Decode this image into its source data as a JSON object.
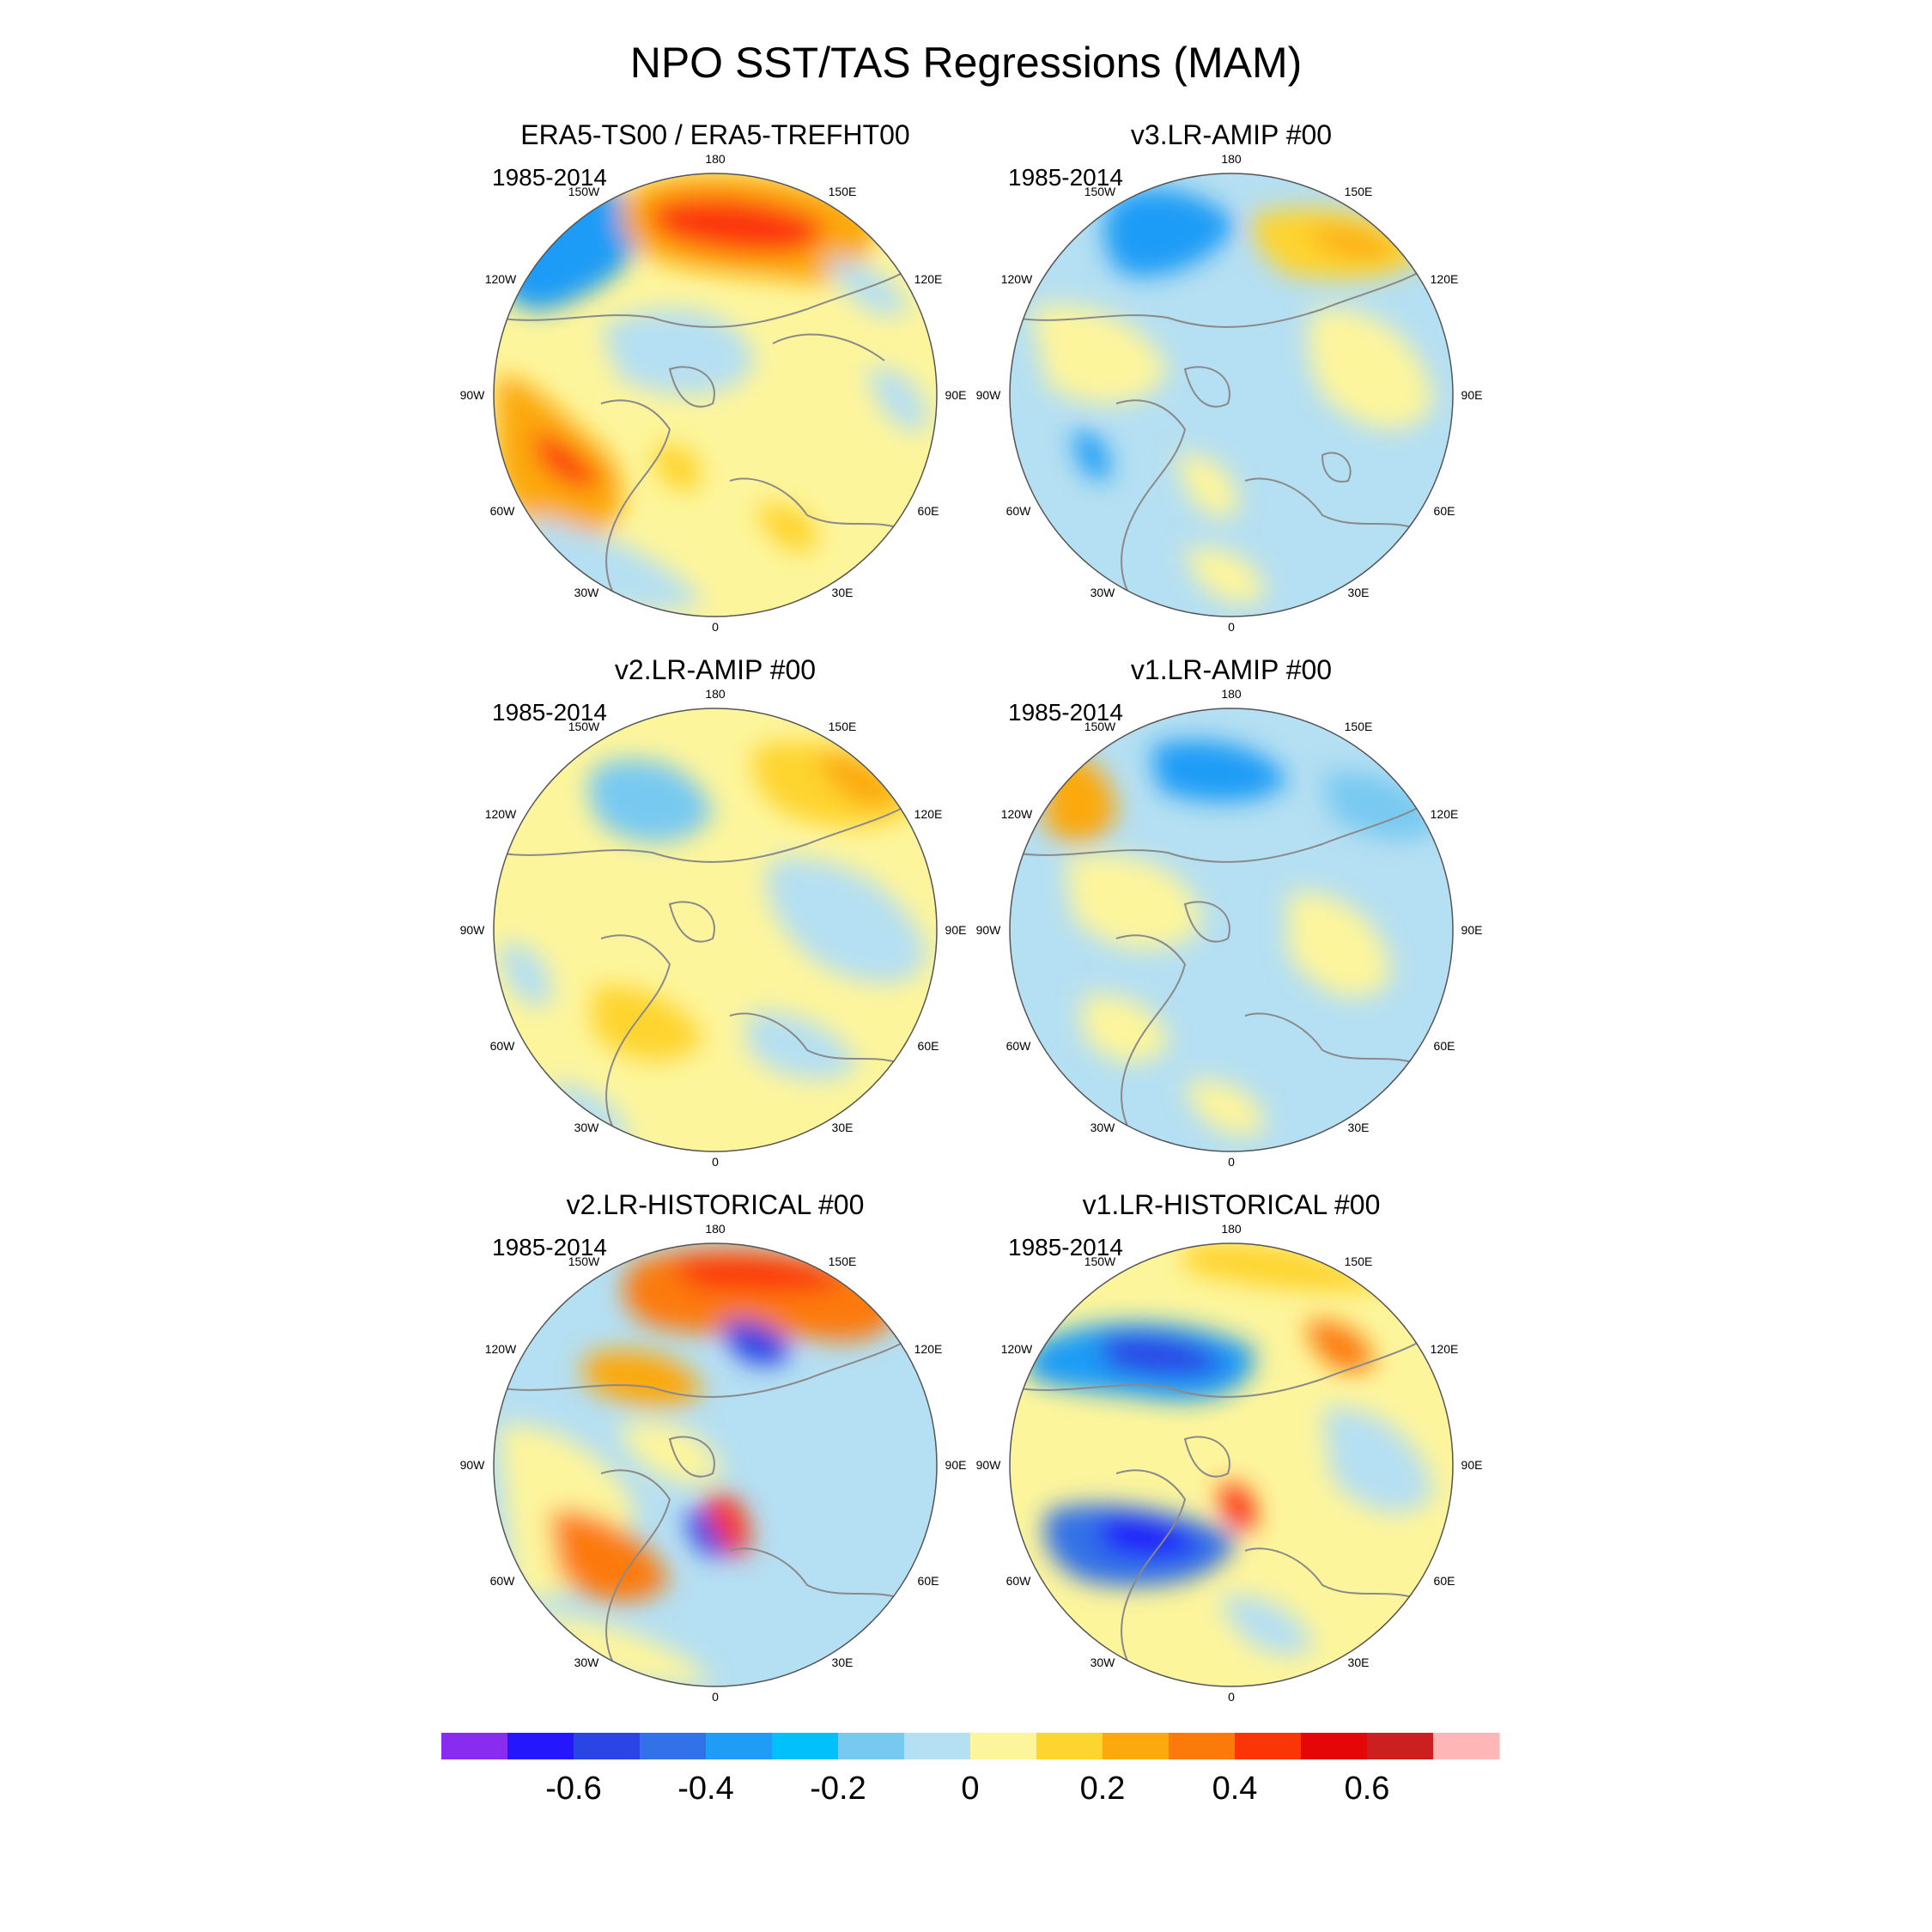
{
  "title": "NPO SST/TAS Regressions (MAM)",
  "panels": [
    {
      "title": "ERA5-TS00 / ERA5-TREFHT00",
      "period": "1985-2014"
    },
    {
      "title": "v3.LR-AMIP  #00",
      "period": "1985-2014"
    },
    {
      "title": "v2.LR-AMIP  #00",
      "period": "1985-2014"
    },
    {
      "title": "v1.LR-AMIP  #00",
      "period": "1985-2014"
    },
    {
      "title": "v2.LR-HISTORICAL  #00",
      "period": "1985-2014"
    },
    {
      "title": "v1.LR-HISTORICAL  #00",
      "period": "1985-2014"
    }
  ],
  "lon_labels": {
    "deg180": "180",
    "e150": "150E",
    "e120": "120E",
    "e90": "90E",
    "e60": "60E",
    "e30": "30E",
    "deg0": "0",
    "w30": "30W",
    "w60": "60W",
    "w90": "90W",
    "w120": "120W",
    "w150": "150W"
  },
  "colorbar": {
    "colors": [
      "#8a2bf0",
      "#2417fb",
      "#2b44e6",
      "#3271e8",
      "#1f9cf6",
      "#02c0f9",
      "#78c9f2",
      "#b5dff2",
      "#fdf59c",
      "#fed42e",
      "#fca90d",
      "#fc7a0a",
      "#fc3507",
      "#e50707",
      "#cc1f1f",
      "#ffb6b6"
    ],
    "ticks": [
      "-0.6",
      "-0.4",
      "-0.2",
      "0",
      "0.2",
      "0.4",
      "0.6"
    ]
  },
  "colors": {
    "land_outline": "#8a8a8a",
    "rim": "#555555"
  }
}
